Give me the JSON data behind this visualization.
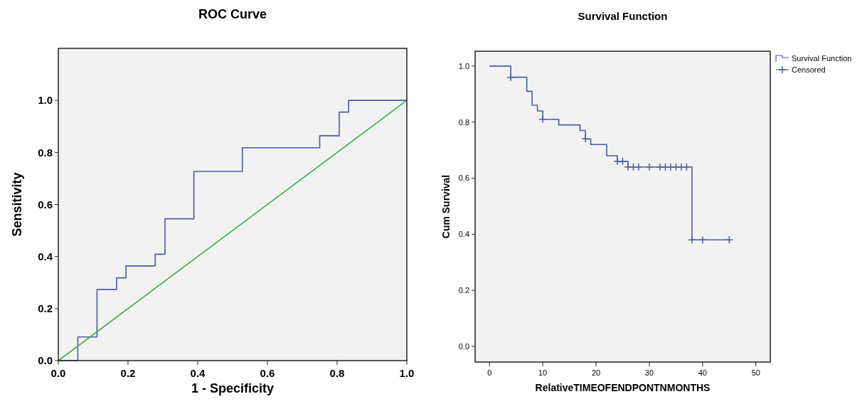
{
  "chart_data": [
    {
      "type": "line",
      "title": "ROC Curve",
      "xlabel": "1 - Specificity",
      "ylabel": "Sensitivity",
      "xlim": [
        0,
        1
      ],
      "ylim": [
        0,
        1.2
      ],
      "xticks": [
        {
          "value": 0,
          "label": "0.0"
        },
        {
          "value": 0.2,
          "label": "0.2"
        },
        {
          "value": 0.4,
          "label": "0.4"
        },
        {
          "value": 0.6,
          "label": "0.6"
        },
        {
          "value": 0.8,
          "label": "0.8"
        },
        {
          "value": 1,
          "label": "1.0"
        }
      ],
      "yticks": [
        {
          "value": 0,
          "label": "0.0"
        },
        {
          "value": 0.2,
          "label": "0.2"
        },
        {
          "value": 0.4,
          "label": "0.4"
        },
        {
          "value": 0.6,
          "label": "0.6"
        },
        {
          "value": 0.8,
          "label": "0.8"
        },
        {
          "value": 1,
          "label": "1.0"
        }
      ],
      "grid": false,
      "legend": false,
      "series": [
        {
          "color": "#4a5aa8",
          "x": [
            0,
            0.056,
            0.056,
            0.111,
            0.111,
            0.167,
            0.167,
            0.194,
            0.194,
            0.278,
            0.278,
            0.306,
            0.306,
            0.389,
            0.389,
            0.528,
            0.528,
            0.75,
            0.75,
            0.806,
            0.806,
            0.833,
            0.833,
            1
          ],
          "values": [
            0,
            0,
            0.091,
            0.091,
            0.273,
            0.273,
            0.318,
            0.318,
            0.364,
            0.364,
            0.409,
            0.409,
            0.545,
            0.545,
            0.727,
            0.727,
            0.818,
            0.818,
            0.864,
            0.864,
            0.955,
            0.955,
            1,
            1
          ]
        },
        {
          "color": "#3fae49",
          "x": [
            0,
            1
          ],
          "values": [
            0,
            1
          ]
        }
      ]
    },
    {
      "type": "step",
      "title": "Survival Function",
      "xlabel": "RelativeTIMEOFENDPONTNMONTHS",
      "ylabel": "Cum Survival",
      "xlim": [
        -2.7,
        52.7
      ],
      "ylim": [
        -0.056,
        1.053
      ],
      "xticks": [
        0,
        10,
        20,
        30,
        40,
        50
      ],
      "yticks": [
        {
          "value": 0,
          "label": "0.0"
        },
        {
          "value": 0.2,
          "label": "0.2"
        },
        {
          "value": 0.4,
          "label": "0.4"
        },
        {
          "value": 0.6,
          "label": "0.6"
        },
        {
          "value": 0.8,
          "label": "0.8"
        },
        {
          "value": 1,
          "label": "1.0"
        }
      ],
      "grid": false,
      "legend": "top right",
      "series": [
        {
          "name": "Survival Function",
          "marker": "none",
          "color": "#4b5ba0",
          "x": [
            0,
            4,
            7,
            8,
            9,
            10,
            13,
            17,
            18,
            19,
            22,
            24,
            26,
            38,
            45
          ],
          "values": [
            1,
            0.96,
            0.91,
            0.86,
            0.84,
            0.81,
            0.79,
            0.77,
            0.74,
            0.72,
            0.68,
            0.66,
            0.64,
            0.38,
            0.38
          ]
        },
        {
          "name": "Censored",
          "type": "scatter",
          "marker": "cross",
          "color": "#4b5ba0",
          "x": [
            4,
            10,
            18,
            24,
            25,
            26,
            27,
            28,
            30,
            32,
            33,
            34,
            35,
            36,
            37,
            38,
            40,
            45
          ],
          "values": [
            0.96,
            0.81,
            0.74,
            0.66,
            0.66,
            0.64,
            0.64,
            0.64,
            0.64,
            0.64,
            0.64,
            0.64,
            0.64,
            0.64,
            0.64,
            0.38,
            0.38,
            0.38
          ]
        }
      ]
    }
  ]
}
